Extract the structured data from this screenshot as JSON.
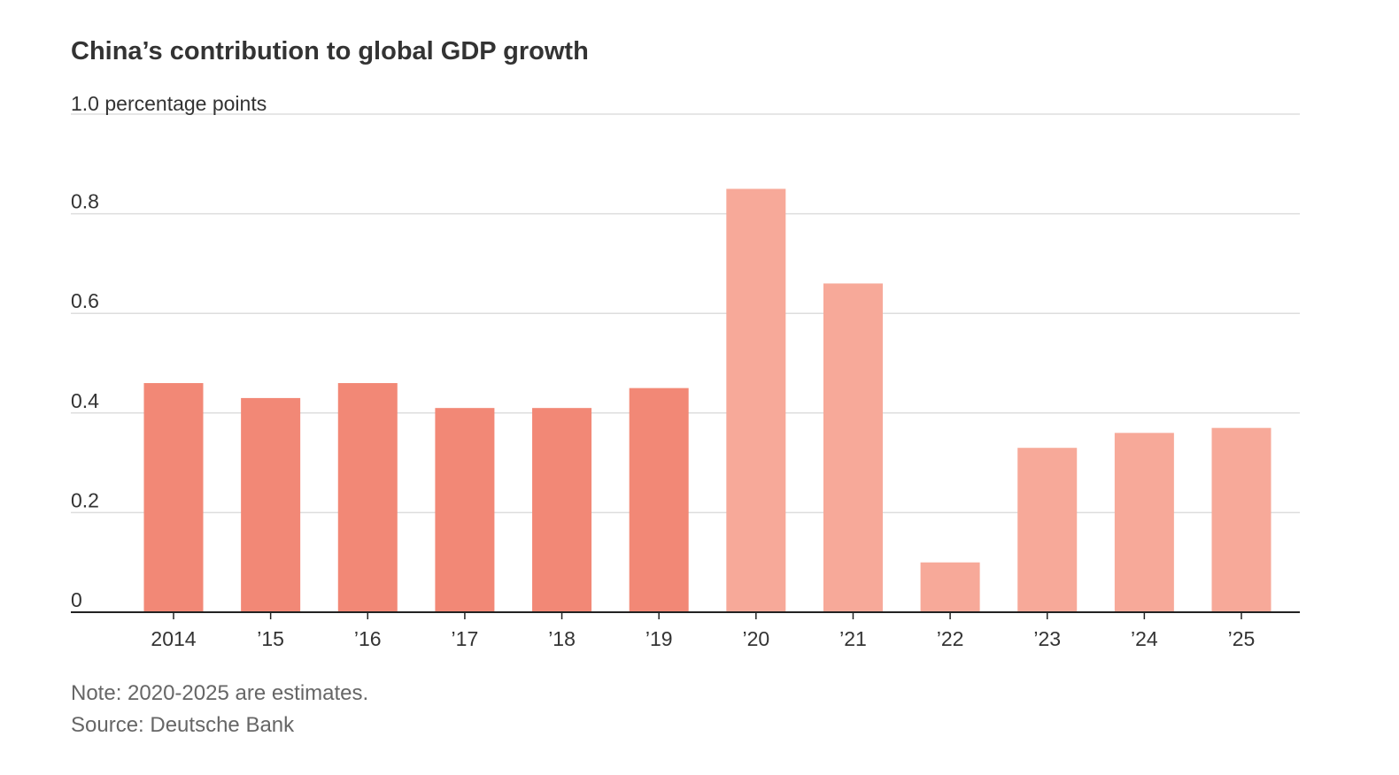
{
  "chart_data": {
    "type": "bar",
    "title": "China’s contribution to global GDP growth",
    "ylabel": "1.0 percentage points",
    "ylim": [
      0,
      1.0
    ],
    "yticks": [
      "0",
      "0.2",
      "0.4",
      "0.6",
      "0.8"
    ],
    "grid": true,
    "categories": [
      "2014",
      "’15",
      "’16",
      "’17",
      "’18",
      "’19",
      "’20",
      "’21",
      "’22",
      "’23",
      "’24",
      "’25"
    ],
    "values": [
      0.46,
      0.43,
      0.46,
      0.41,
      0.41,
      0.45,
      0.85,
      0.66,
      0.1,
      0.33,
      0.36,
      0.37
    ],
    "estimate_from_index": 6,
    "colors": {
      "actual": "#f28876",
      "estimate": "#f7a999",
      "grid": "#dddddd",
      "axis": "#222222",
      "tick_text": "#333333"
    }
  },
  "footer": {
    "note": "Note: 2020-2025 are estimates.",
    "source": "Source: Deutsche Bank"
  }
}
